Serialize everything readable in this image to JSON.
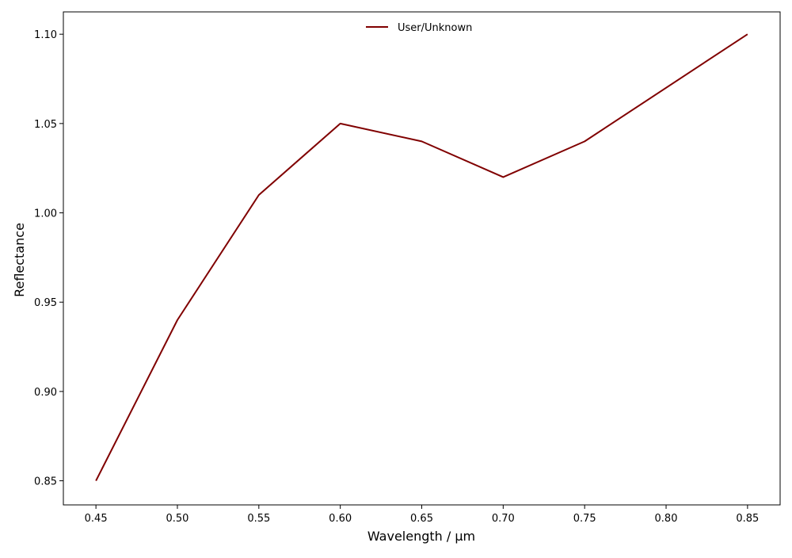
{
  "chart_data": {
    "type": "line",
    "title": "",
    "xlabel": "Wavelength / µm",
    "ylabel": "Reflectance",
    "xlim": [
      0.43,
      0.87
    ],
    "ylim": [
      0.8365,
      1.1125
    ],
    "xticks": [
      0.45,
      0.5,
      0.55,
      0.6,
      0.65,
      0.7,
      0.75,
      0.8,
      0.85
    ],
    "xtick_labels": [
      "0.45",
      "0.50",
      "0.55",
      "0.60",
      "0.65",
      "0.70",
      "0.75",
      "0.80",
      "0.85"
    ],
    "yticks": [
      0.85,
      0.9,
      0.95,
      1.0,
      1.05,
      1.1
    ],
    "ytick_labels": [
      "0.85",
      "0.90",
      "0.95",
      "1.00",
      "1.05",
      "1.10"
    ],
    "grid": false,
    "legend_position": "top-center",
    "series": [
      {
        "name": "User/Unknown",
        "color": "#800000",
        "x": [
          0.45,
          0.5,
          0.55,
          0.6,
          0.65,
          0.7,
          0.75,
          0.85
        ],
        "y": [
          0.85,
          0.94,
          1.01,
          1.05,
          1.04,
          1.02,
          1.04,
          1.1
        ]
      }
    ]
  }
}
